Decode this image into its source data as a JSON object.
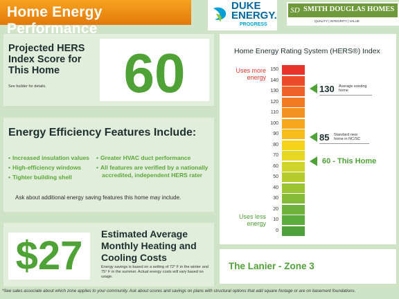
{
  "header": {
    "title": "Home Energy Performance",
    "duke_logo": {
      "line1": "DUKE",
      "line2": "ENERGY.",
      "line3": "PROGRESS"
    },
    "builder_logo": {
      "name": "SMITH DOUGLAS HOMES",
      "tagline": "QUALITY | INTEGRITY | VALUE",
      "monogram": "SD"
    }
  },
  "hers_box": {
    "label": "Projected HERS Index Score for This Home",
    "note": "See builder for details.",
    "score": "60"
  },
  "features": {
    "title": "Energy Efficiency Features Include:",
    "left_items": [
      "Increased insulation values",
      "High-efficiency windows",
      "Tighter building shell"
    ],
    "right_items": [
      "Greater HVAC duct performance",
      "All features are verified by a nationally accredited, independent HERS rater"
    ],
    "ask": "Ask about additional energy saving features this home may include."
  },
  "cost": {
    "amount": "$27",
    "title": "Estimated Average Monthly Heating and Cooling Costs",
    "note": "Energy savings is based on a setting of 72° F in the winter and 75° F in the summer. Actual energy costs will vary based on usage."
  },
  "chart": {
    "title": "Home Energy Rating System (HERS®) Index",
    "uses_more": "Uses more energy",
    "uses_less": "Uses less energy",
    "ticks": [
      "150",
      "140",
      "130",
      "120",
      "110",
      "100",
      "90",
      "80",
      "70",
      "60",
      "50",
      "40",
      "30",
      "20",
      "10",
      "0"
    ],
    "colors": [
      "#e8332a",
      "#ec4a28",
      "#ef6126",
      "#f17a22",
      "#f3921f",
      "#f5a81c",
      "#f7bd1b",
      "#f6d21c",
      "#e6d723",
      "#cfd42a",
      "#b5cc30",
      "#9cc435",
      "#85bb39",
      "#6fb33c",
      "#5cab3d",
      "#4ea23d"
    ],
    "markers": [
      {
        "value": "130",
        "desc": "Average existing home"
      },
      {
        "value": "85",
        "desc": "Standard new home in NC/SC"
      }
    ],
    "this_home": "60 - This Home"
  },
  "zone": {
    "label": "The Lanier - Zone 3"
  },
  "footnote": "*See sales associate about which zone applies to your community.  Ask about scores and savings on plans with structural options that add square footage or are on basement foundations."
}
